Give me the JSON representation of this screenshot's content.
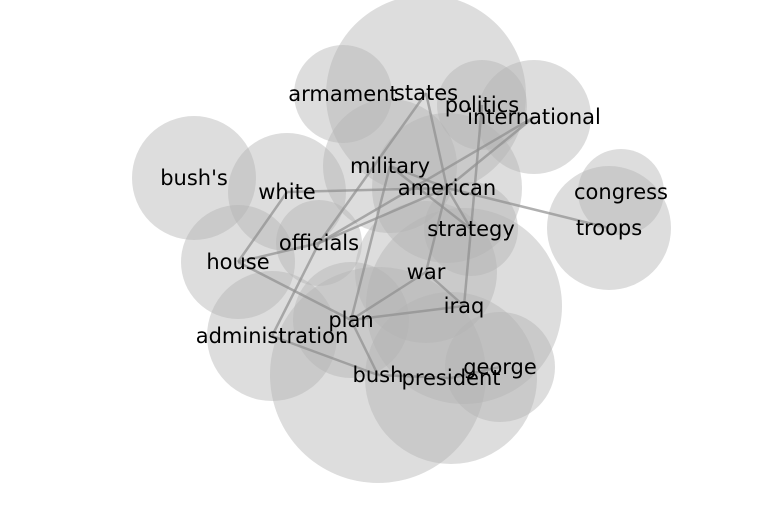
{
  "diagram": {
    "nodes": [
      {
        "id": "armament",
        "label": "armament"
      },
      {
        "id": "states",
        "label": "states"
      },
      {
        "id": "politics",
        "label": "politics"
      },
      {
        "id": "international",
        "label": "international"
      },
      {
        "id": "bushs",
        "label": "bush's"
      },
      {
        "id": "military",
        "label": "military"
      },
      {
        "id": "white",
        "label": "white"
      },
      {
        "id": "american",
        "label": "american"
      },
      {
        "id": "congress",
        "label": "congress"
      },
      {
        "id": "troops",
        "label": "troops"
      },
      {
        "id": "strategy",
        "label": "strategy"
      },
      {
        "id": "officials",
        "label": "officials"
      },
      {
        "id": "house",
        "label": "house"
      },
      {
        "id": "war",
        "label": "war"
      },
      {
        "id": "iraq",
        "label": "iraq"
      },
      {
        "id": "plan",
        "label": "plan"
      },
      {
        "id": "administration",
        "label": "administration"
      },
      {
        "id": "george",
        "label": "george"
      },
      {
        "id": "bush",
        "label": "bush"
      },
      {
        "id": "president",
        "label": "president"
      }
    ],
    "edges": [
      [
        "american",
        "white"
      ],
      [
        "american",
        "military"
      ],
      [
        "american",
        "troops"
      ],
      [
        "american",
        "strategy"
      ],
      [
        "american",
        "officials"
      ],
      [
        "american",
        "international"
      ],
      [
        "american",
        "states"
      ],
      [
        "american",
        "war"
      ],
      [
        "military",
        "strategy"
      ],
      [
        "military",
        "plan"
      ],
      [
        "politics",
        "strategy"
      ],
      [
        "states",
        "officials"
      ],
      [
        "international",
        "officials"
      ],
      [
        "white",
        "house"
      ],
      [
        "house",
        "plan"
      ],
      [
        "house",
        "officials"
      ],
      [
        "officials",
        "administration"
      ],
      [
        "war",
        "plan"
      ],
      [
        "war",
        "iraq"
      ],
      [
        "strategy",
        "iraq"
      ],
      [
        "plan",
        "iraq"
      ],
      [
        "plan",
        "bush"
      ],
      [
        "administration",
        "bush"
      ],
      [
        "bush",
        "president"
      ],
      [
        "president",
        "george"
      ]
    ]
  }
}
